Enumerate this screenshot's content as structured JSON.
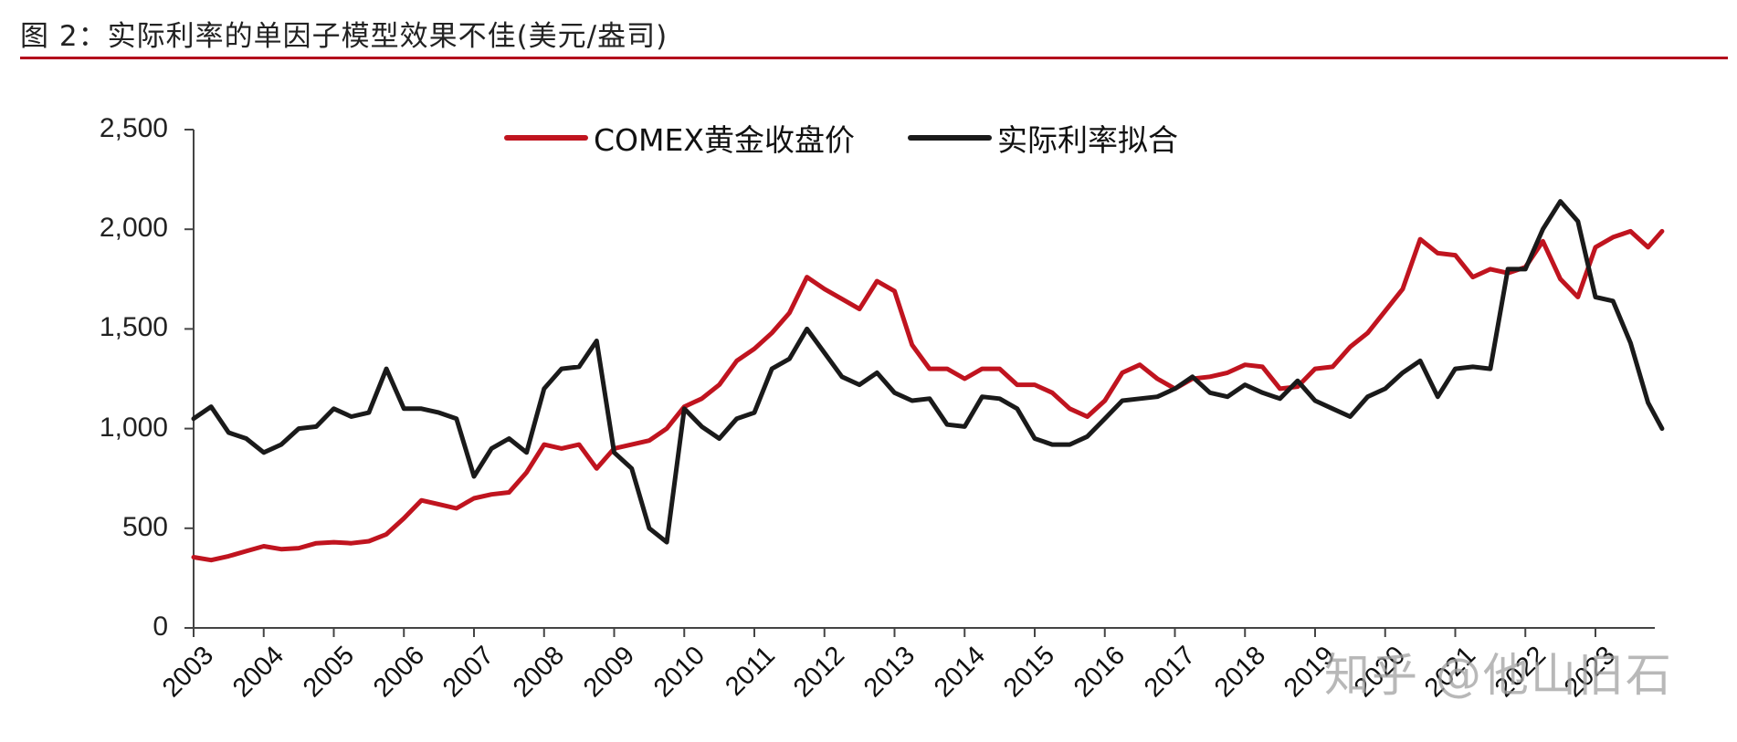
{
  "title": "图 2：实际利率的单因子模型效果不佳(美元/盎司)",
  "legend": [
    {
      "label": "COMEX黄金收盘价",
      "color": "#c0141f"
    },
    {
      "label": "实际利率拟合",
      "color": "#1a1a1a"
    }
  ],
  "y_ticks": [
    "2,500",
    "2,000",
    "1,500",
    "1,000",
    "500",
    "0"
  ],
  "x_ticks": [
    "2003",
    "2004",
    "2005",
    "2006",
    "2007",
    "2008",
    "2009",
    "2010",
    "2011",
    "2012",
    "2013",
    "2014",
    "2015",
    "2016",
    "2017",
    "2018",
    "2019",
    "2020",
    "2021",
    "2022",
    "2023"
  ],
  "watermark": "知乎 @他山旧石",
  "chart_data": {
    "type": "line",
    "title": "图 2：实际利率的单因子模型效果不佳(美元/盎司)",
    "xlabel": "",
    "ylabel": "美元/盎司",
    "ylim": [
      0,
      2500
    ],
    "xlim": [
      2003,
      2023.95
    ],
    "grid": false,
    "legend_position": "top",
    "x": [
      2003.0,
      2003.25,
      2003.5,
      2003.75,
      2004.0,
      2004.25,
      2004.5,
      2004.75,
      2005.0,
      2005.25,
      2005.5,
      2005.75,
      2006.0,
      2006.25,
      2006.5,
      2006.75,
      2007.0,
      2007.25,
      2007.5,
      2007.75,
      2008.0,
      2008.25,
      2008.5,
      2008.75,
      2009.0,
      2009.25,
      2009.5,
      2009.75,
      2010.0,
      2010.25,
      2010.5,
      2010.75,
      2011.0,
      2011.25,
      2011.5,
      2011.75,
      2012.0,
      2012.25,
      2012.5,
      2012.75,
      2013.0,
      2013.25,
      2013.5,
      2013.75,
      2014.0,
      2014.25,
      2014.5,
      2014.75,
      2015.0,
      2015.25,
      2015.5,
      2015.75,
      2016.0,
      2016.25,
      2016.5,
      2016.75,
      2017.0,
      2017.25,
      2017.5,
      2017.75,
      2018.0,
      2018.25,
      2018.5,
      2018.75,
      2019.0,
      2019.25,
      2019.5,
      2019.75,
      2020.0,
      2020.25,
      2020.5,
      2020.75,
      2021.0,
      2021.25,
      2021.5,
      2021.75,
      2022.0,
      2022.25,
      2022.5,
      2022.75,
      2023.0,
      2023.25,
      2023.5,
      2023.75,
      2023.95
    ],
    "series": [
      {
        "name": "COMEX黄金收盘价",
        "color": "#c0141f",
        "values": [
          355,
          340,
          360,
          385,
          410,
          395,
          400,
          425,
          430,
          425,
          435,
          470,
          550,
          640,
          620,
          600,
          650,
          670,
          680,
          780,
          920,
          900,
          920,
          800,
          900,
          920,
          940,
          1000,
          1110,
          1150,
          1220,
          1340,
          1400,
          1480,
          1580,
          1760,
          1700,
          1650,
          1600,
          1740,
          1690,
          1420,
          1300,
          1300,
          1250,
          1300,
          1300,
          1220,
          1220,
          1180,
          1100,
          1060,
          1140,
          1280,
          1320,
          1250,
          1200,
          1250,
          1260,
          1280,
          1320,
          1310,
          1200,
          1210,
          1300,
          1310,
          1410,
          1480,
          1590,
          1700,
          1950,
          1880,
          1870,
          1760,
          1800,
          1780,
          1810,
          1940,
          1750,
          1660,
          1910,
          1960,
          1990,
          1910,
          1990
        ]
      },
      {
        "name": "实际利率拟合",
        "color": "#1a1a1a",
        "values": [
          1050,
          1110,
          980,
          950,
          880,
          920,
          1000,
          1010,
          1100,
          1060,
          1080,
          1300,
          1100,
          1100,
          1080,
          1050,
          760,
          900,
          950,
          880,
          1200,
          1300,
          1310,
          1440,
          880,
          800,
          500,
          430,
          1100,
          1010,
          950,
          1050,
          1080,
          1300,
          1350,
          1500,
          1380,
          1260,
          1220,
          1280,
          1180,
          1140,
          1150,
          1020,
          1010,
          1160,
          1150,
          1100,
          950,
          920,
          920,
          960,
          1050,
          1140,
          1150,
          1160,
          1200,
          1260,
          1180,
          1160,
          1220,
          1180,
          1150,
          1240,
          1140,
          1100,
          1060,
          1160,
          1200,
          1280,
          1340,
          1160,
          1300,
          1310,
          1300,
          1800,
          1800,
          2000,
          2140,
          2040,
          1660,
          1640,
          1430,
          1130,
          1000
        ]
      }
    ]
  }
}
